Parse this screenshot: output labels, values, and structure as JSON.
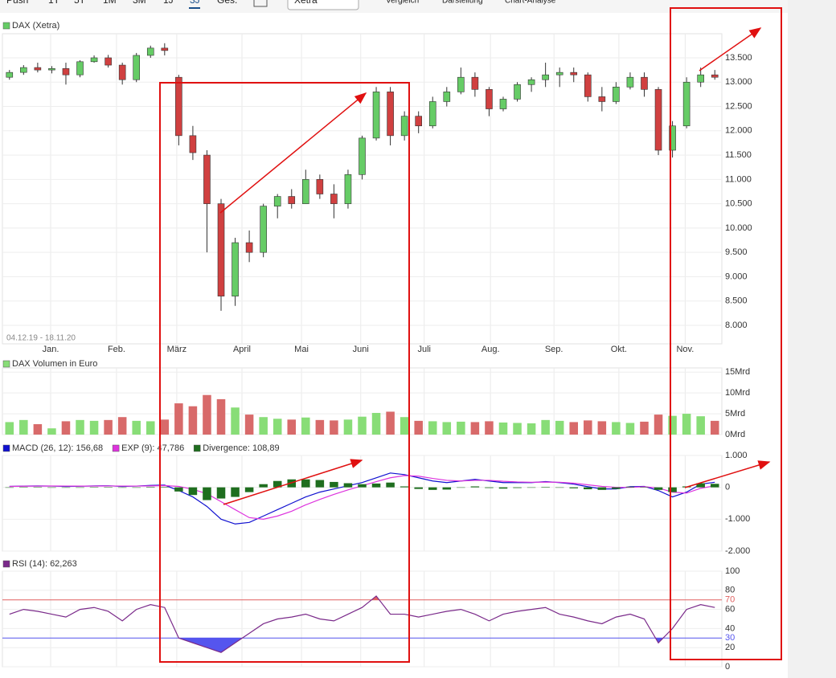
{
  "toolbar": {
    "ranges": [
      "Push",
      "1T",
      "5T",
      "1M",
      "3M",
      "1J",
      "3J",
      "Ges."
    ],
    "selected_index": 6,
    "exchange": "Xetra",
    "menus": [
      "Vergleich",
      "Darstellung",
      "Chart-Analyse"
    ]
  },
  "date_range": "04.12.19 - 18.11.20",
  "chart_data": [
    {
      "type": "candlestick",
      "x": [
        0,
        1,
        2,
        3,
        4,
        5,
        6,
        7,
        8,
        9,
        10,
        11,
        12,
        13,
        14,
        15,
        16,
        17,
        18,
        19,
        20,
        21,
        22,
        23,
        24,
        25,
        26,
        27,
        28,
        29,
        30,
        31,
        32,
        33,
        34,
        35,
        36,
        37,
        38,
        39,
        40,
        41,
        42,
        43,
        44,
        45,
        46,
        47,
        48,
        49,
        50
      ],
      "xlim": [
        -0.5,
        50.5
      ],
      "xticks": [
        {
          "value": 2.92,
          "label": "Jan."
        },
        {
          "value": 7.59,
          "label": "Feb."
        },
        {
          "value": 11.86,
          "label": "März"
        },
        {
          "value": 16.48,
          "label": "April"
        },
        {
          "value": 20.7,
          "label": "Mai"
        },
        {
          "value": 24.9,
          "label": "Juni"
        },
        {
          "value": 29.4,
          "label": "Juli"
        },
        {
          "value": 34.1,
          "label": "Aug."
        },
        {
          "value": 38.6,
          "label": "Sep."
        },
        {
          "value": 43.2,
          "label": "Okt."
        },
        {
          "value": 47.9,
          "label": "Nov."
        }
      ],
      "ylim": [
        7620,
        13995
      ],
      "yticks": [
        {
          "value": 8000,
          "label": "8.000"
        },
        {
          "value": 8500,
          "label": "8.500"
        },
        {
          "value": 9000,
          "label": "9.000"
        },
        {
          "value": 9500,
          "label": "9.500"
        },
        {
          "value": 10000,
          "label": "10.000"
        },
        {
          "value": 10500,
          "label": "10.500"
        },
        {
          "value": 11000,
          "label": "11.000"
        },
        {
          "value": 11500,
          "label": "11.500"
        },
        {
          "value": 12000,
          "label": "12.000"
        },
        {
          "value": 12500,
          "label": "12.500"
        },
        {
          "value": 13000,
          "label": "13.000"
        },
        {
          "value": 13500,
          "label": "13.500"
        }
      ],
      "grid": true,
      "up_color": "#66cc66",
      "down_color": "#d04040",
      "series": [
        {
          "name": "DAX (Xetra)",
          "color": "#66cc66",
          "open": [
            13100,
            13200,
            13300,
            13250,
            13280,
            13150,
            13420,
            13500,
            13350,
            13050,
            13550,
            13700,
            13100,
            11900,
            11500,
            10500,
            8600,
            9700,
            9500,
            10450,
            10650,
            10500,
            11000,
            10700,
            10500,
            11100,
            11850,
            12800,
            11900,
            12300,
            12100,
            12600,
            12800,
            13100,
            12850,
            12450,
            12650,
            12950,
            13050,
            13150,
            13200,
            13150,
            12700,
            12600,
            12900,
            13100,
            12850,
            11600,
            12100,
            13000,
            13150
          ],
          "high": [
            13250,
            13350,
            13400,
            13330,
            13400,
            13450,
            13550,
            13560,
            13400,
            13600,
            13750,
            13800,
            13150,
            12100,
            11600,
            10600,
            9800,
            9950,
            10500,
            10700,
            10800,
            11200,
            11100,
            10900,
            11200,
            11900,
            12900,
            12900,
            12400,
            12400,
            12700,
            12900,
            13300,
            13200,
            12900,
            12700,
            13000,
            13100,
            13400,
            13300,
            13300,
            13200,
            12900,
            13000,
            13200,
            13200,
            12900,
            12200,
            13100,
            13300,
            13250
          ],
          "low": [
            13050,
            13150,
            13200,
            13180,
            12950,
            13100,
            13400,
            13300,
            12950,
            13000,
            13500,
            13550,
            11700,
            11400,
            9500,
            8300,
            8400,
            9300,
            9400,
            10200,
            10400,
            10500,
            10600,
            10200,
            10400,
            11000,
            11800,
            11700,
            11800,
            11950,
            12050,
            12500,
            12750,
            12700,
            12300,
            12400,
            12600,
            12800,
            12900,
            12900,
            13000,
            12600,
            12400,
            12550,
            12850,
            12700,
            11500,
            11450,
            12050,
            12900,
            13050
          ],
          "close": [
            13200,
            13300,
            13250,
            13280,
            13150,
            13420,
            13500,
            13350,
            13050,
            13550,
            13700,
            13650,
            11900,
            11550,
            10500,
            8600,
            9700,
            9500,
            10450,
            10650,
            10500,
            11000,
            10700,
            10500,
            11100,
            11850,
            12800,
            11900,
            12300,
            12100,
            12600,
            12800,
            13100,
            12850,
            12450,
            12650,
            12950,
            13050,
            13150,
            13200,
            13150,
            12700,
            12600,
            12900,
            13100,
            12850,
            11600,
            12100,
            13000,
            13150,
            13100
          ]
        }
      ]
    },
    {
      "type": "bar",
      "ylim": [
        0,
        16
      ],
      "yticks": [
        {
          "value": 0,
          "label": "0Mrd"
        },
        {
          "value": 5,
          "label": "5Mrd"
        },
        {
          "value": 10,
          "label": "10Mrd"
        },
        {
          "value": 15,
          "label": "15Mrd"
        }
      ],
      "up_color": "#88dd77",
      "down_color": "#d86a6a",
      "series": [
        {
          "name": "DAX Volumen in Euro",
          "color": "#88dd77",
          "values": [
            3,
            3.5,
            2.5,
            1.5,
            3.2,
            3.5,
            3.3,
            3.5,
            4.2,
            3.3,
            3.2,
            3.6,
            7.5,
            6.8,
            9.5,
            8.5,
            6.5,
            4.8,
            4.2,
            3.8,
            3.6,
            4.1,
            3.5,
            3.4,
            3.6,
            4.3,
            5.2,
            5.5,
            4.2,
            3.3,
            3.2,
            3,
            3.1,
            3,
            3.2,
            2.9,
            2.8,
            2.7,
            3.5,
            3.3,
            3,
            3.4,
            3.2,
            3,
            2.8,
            3.1,
            4.8,
            4.5,
            5,
            4.4,
            3.3
          ]
        }
      ]
    },
    {
      "type": "line",
      "ylim": [
        -2000,
        1000
      ],
      "yticks": [
        {
          "value": -2000,
          "label": "-2.000"
        },
        {
          "value": -1000,
          "label": "-1.000"
        },
        0,
        {
          "value": 1000,
          "label": "1.000"
        }
      ],
      "series": [
        {
          "name": "MACD (26, 12): 156,68",
          "color": "#1010d0",
          "style": "line",
          "values": [
            30,
            40,
            45,
            40,
            30,
            35,
            45,
            50,
            30,
            40,
            60,
            70,
            -100,
            -300,
            -600,
            -1000,
            -1150,
            -1100,
            -900,
            -700,
            -500,
            -300,
            -150,
            -50,
            50,
            150,
            300,
            450,
            400,
            300,
            200,
            150,
            200,
            250,
            200,
            150,
            150,
            150,
            180,
            150,
            100,
            20,
            -50,
            -50,
            20,
            30,
            -100,
            -300,
            -150,
            100,
            160
          ]
        },
        {
          "name": "EXP (9): 47,786",
          "color": "#dd33dd",
          "style": "line",
          "values": [
            30,
            35,
            40,
            42,
            40,
            38,
            40,
            43,
            40,
            40,
            45,
            55,
            30,
            -60,
            -200,
            -450,
            -700,
            -950,
            -1000,
            -900,
            -750,
            -550,
            -380,
            -220,
            -80,
            50,
            180,
            300,
            370,
            350,
            280,
            220,
            200,
            220,
            220,
            190,
            170,
            160,
            165,
            160,
            130,
            80,
            30,
            0,
            0,
            20,
            -20,
            -150,
            -180,
            -30,
            50
          ]
        },
        {
          "name": "Divergence: 108,89",
          "color": "#1f6e1f",
          "style": "bar",
          "values": [
            0,
            5,
            5,
            -2,
            -10,
            -3,
            5,
            7,
            -10,
            0,
            15,
            15,
            -130,
            -240,
            -400,
            -350,
            -300,
            -150,
            100,
            200,
            250,
            250,
            230,
            170,
            130,
            100,
            120,
            150,
            30,
            -50,
            -80,
            -70,
            0,
            30,
            -20,
            -40,
            -20,
            -10,
            15,
            -10,
            -30,
            -60,
            -80,
            -50,
            20,
            10,
            -80,
            -150,
            30,
            130,
            110
          ]
        }
      ]
    },
    {
      "type": "line",
      "ylim": [
        0,
        100
      ],
      "yticks": [
        0,
        20,
        40,
        60,
        80,
        100
      ],
      "levels": [
        {
          "value": 70,
          "label": "70",
          "color": "#e06060"
        },
        {
          "value": 30,
          "label": "30",
          "color": "#5555ee"
        }
      ],
      "series": [
        {
          "name": "RSI (14): 62,263",
          "color": "#7a2a8a",
          "style": "line",
          "values": [
            55,
            60,
            58,
            55,
            52,
            60,
            62,
            58,
            48,
            60,
            65,
            62,
            30,
            25,
            20,
            15,
            25,
            35,
            45,
            50,
            52,
            55,
            50,
            48,
            55,
            62,
            74,
            55,
            55,
            52,
            55,
            58,
            60,
            55,
            48,
            55,
            58,
            60,
            62,
            55,
            52,
            48,
            45,
            52,
            55,
            50,
            25,
            40,
            60,
            65,
            62
          ]
        }
      ]
    }
  ]
}
